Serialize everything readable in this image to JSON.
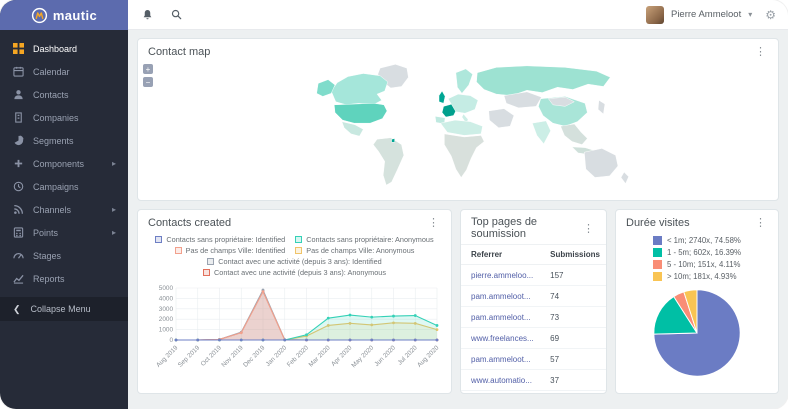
{
  "brand": {
    "name": "mautic"
  },
  "topbar": {
    "user_name": "Pierre Ammeloot"
  },
  "sidebar": {
    "items": [
      {
        "label": "Dashboard",
        "icon": "dashboard-icon",
        "active": true,
        "expandable": false
      },
      {
        "label": "Calendar",
        "icon": "calendar-icon",
        "active": false,
        "expandable": false
      },
      {
        "label": "Contacts",
        "icon": "contacts-icon",
        "active": false,
        "expandable": false
      },
      {
        "label": "Companies",
        "icon": "companies-icon",
        "active": false,
        "expandable": false
      },
      {
        "label": "Segments",
        "icon": "segments-icon",
        "active": false,
        "expandable": false
      },
      {
        "label": "Components",
        "icon": "components-icon",
        "active": false,
        "expandable": true
      },
      {
        "label": "Campaigns",
        "icon": "campaigns-icon",
        "active": false,
        "expandable": false
      },
      {
        "label": "Channels",
        "icon": "channels-icon",
        "active": false,
        "expandable": true
      },
      {
        "label": "Points",
        "icon": "points-icon",
        "active": false,
        "expandable": true
      },
      {
        "label": "Stages",
        "icon": "stages-icon",
        "active": false,
        "expandable": false
      },
      {
        "label": "Reports",
        "icon": "reports-icon",
        "active": false,
        "expandable": false
      }
    ],
    "collapse_label": "Collapse Menu"
  },
  "map_panel": {
    "title": "Contact map",
    "zoom_in_label": "+",
    "zoom_out_label": "−",
    "regions": {
      "greenland": "#d8dde1",
      "alaska": "#7fdccb",
      "canada": "#a5e6da",
      "usa": "#5fd3bd",
      "mexico": "#c8e8e0",
      "south-america": "#d5e2dd",
      "suriname": "#00a693",
      "uk": "#00a693",
      "france": "#00a08d",
      "iberia": "#bfe9e0",
      "scandinavia": "#aee7db",
      "central-europe": "#c5ece4",
      "italy": "#cdeee6",
      "russia": "#9de2d2",
      "kazakhstan": "#d8dde1",
      "china": "#a9e5d8",
      "mongolia": "#d8dde1",
      "india": "#cceee6",
      "middle-east": "#d8dde1",
      "north-africa": "#cdeee6",
      "africa": "#d8e0dc",
      "se-asia": "#d4e0dc",
      "indonesia": "#cfe0da",
      "japan": "#d8dde1",
      "australia": "#d8dde1",
      "new-zealand": "#d8dde1"
    }
  },
  "contacts_panel": {
    "title": "Contacts created"
  },
  "table_panel": {
    "title": "Top pages de soumission",
    "columns": [
      "Referrer",
      "Submissions"
    ],
    "rows": [
      [
        "pierre.ammeloo...",
        "157"
      ],
      [
        "pam.ammeloot...",
        "74"
      ],
      [
        "pam.ammeloot...",
        "73"
      ],
      [
        "www.freelances...",
        "69"
      ],
      [
        "pam.ammeloot...",
        "57"
      ],
      [
        "www.automatio...",
        "37"
      ]
    ]
  },
  "pie_panel": {
    "title": "Durée visites"
  },
  "chart_data": [
    {
      "type": "line",
      "title": "Contacts created",
      "x": [
        "Aug 2019",
        "Sep 2019",
        "Oct 2019",
        "Nov 2019",
        "Dec 2019",
        "Jan 2020",
        "Feb 2020",
        "Mar 2020",
        "Apr 2020",
        "May 2020",
        "Jun 2020",
        "Jul 2020",
        "Aug 2020"
      ],
      "ylim": [
        0,
        5000
      ],
      "yticks": [
        0,
        1000,
        2000,
        3000,
        4000,
        5000
      ],
      "grid": true,
      "legend_position": "top",
      "series": [
        {
          "name": "Contacts sans propriétaire: Identified",
          "color": "#6e7fc4",
          "values": [
            0,
            0,
            0,
            0,
            0,
            0,
            0,
            0,
            0,
            0,
            0,
            0,
            0
          ]
        },
        {
          "name": "Contacts sans propriétaire: Anonymous",
          "color": "#35d1b7",
          "values": [
            0,
            0,
            0,
            0,
            0,
            0,
            500,
            2100,
            2400,
            2200,
            2300,
            2350,
            1400
          ]
        },
        {
          "name": "Pas de champs Ville: Identified",
          "color": "#f2a08c",
          "values": [
            0,
            0,
            60,
            700,
            4650,
            0,
            0,
            0,
            0,
            0,
            0,
            0,
            0
          ]
        },
        {
          "name": "Pas de champs Ville: Anonymous",
          "color": "#f0c469",
          "values": [
            0,
            0,
            0,
            0,
            0,
            0,
            380,
            1400,
            1600,
            1450,
            1650,
            1600,
            1000
          ]
        },
        {
          "name": "Contact avec une activité (depuis 3 ans): Identified",
          "color": "#9aa3b0",
          "values": [
            0,
            0,
            60,
            750,
            4800,
            30,
            0,
            0,
            0,
            0,
            0,
            0,
            0
          ]
        },
        {
          "name": "Contact avec une activité (depuis 3 ans): Anonymous",
          "color": "#e2705c",
          "values": [
            0,
            0,
            55,
            720,
            4700,
            20,
            0,
            0,
            0,
            0,
            0,
            0,
            0
          ]
        }
      ]
    },
    {
      "type": "pie",
      "title": "Durée visites",
      "labels": [
        "< 1m; 2740x, 74.58%",
        "1 - 5m; 602x, 16.39%",
        "5 - 10m; 151x, 4.11%",
        "> 10m; 181x, 4.93%"
      ],
      "values": [
        2740,
        602,
        151,
        181
      ],
      "percents": [
        74.58,
        16.39,
        4.11,
        4.93
      ],
      "colors": [
        "#6b7cc4",
        "#00bfa5",
        "#f98d76",
        "#f9c453"
      ],
      "legend_position": "top"
    }
  ]
}
